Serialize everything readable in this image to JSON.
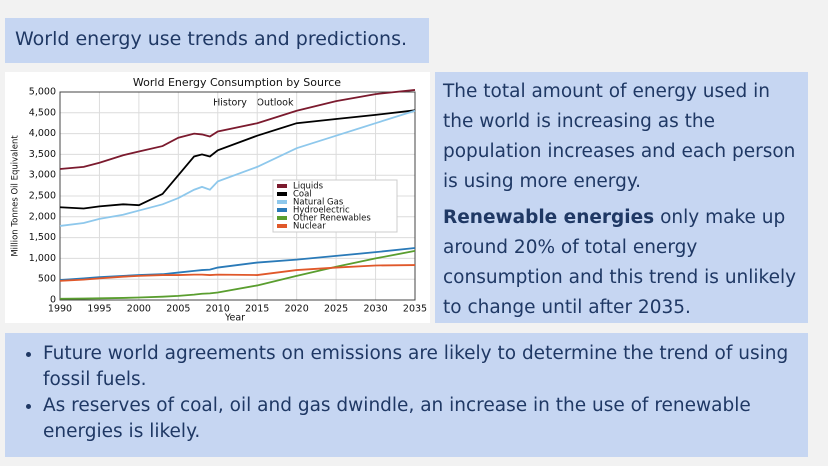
{
  "title": "World energy use trends and predictions.",
  "text_box": {
    "paragraphs": [
      "The total amount of energy used in the world is increasing as the population increases and each person is using more energy.",
      {
        "bold": "Renewable energies",
        "rest": " only make up around 20% of total energy consumption and this trend is unlikely to change until after 2035."
      }
    ]
  },
  "bullets": [
    "Future world agreements on emissions are likely to determine the trend of using fossil fuels.",
    "As reserves of coal, oil and gas dwindle, an increase in the use of renewable energies is likely."
  ],
  "chart_data": {
    "type": "line",
    "title": "World Energy Consumption by Source",
    "annotations": [
      "History",
      "Outlook"
    ],
    "x_label": "Year",
    "y_label": "Million Tonnes Oil Equivalent",
    "x": [
      1990,
      1993,
      1995,
      1998,
      2000,
      2003,
      2005,
      2007,
      2008,
      2009,
      2010,
      2015,
      2020,
      2025,
      2030,
      2035
    ],
    "series": [
      {
        "name": "Liquids",
        "color": "#7b1a2e",
        "values": [
          3150,
          3200,
          3300,
          3480,
          3570,
          3700,
          3900,
          4000,
          3980,
          3930,
          4050,
          4250,
          4550,
          4780,
          4950,
          5050
        ]
      },
      {
        "name": "Coal",
        "color": "#000000",
        "values": [
          2230,
          2200,
          2250,
          2300,
          2280,
          2550,
          3000,
          3450,
          3500,
          3450,
          3600,
          3950,
          4250,
          4350,
          4450,
          4560
        ]
      },
      {
        "name": "Natural Gas",
        "color": "#8ec8ec",
        "values": [
          1780,
          1850,
          1950,
          2050,
          2150,
          2300,
          2450,
          2650,
          2720,
          2650,
          2850,
          3200,
          3650,
          3950,
          4250,
          4550
        ]
      },
      {
        "name": "Hydroelectric",
        "color": "#2a7ab8",
        "values": [
          480,
          520,
          550,
          580,
          600,
          620,
          660,
          700,
          720,
          730,
          780,
          900,
          970,
          1060,
          1150,
          1250
        ]
      },
      {
        "name": "Other Renewables",
        "color": "#5a9e2f",
        "values": [
          30,
          35,
          40,
          50,
          60,
          80,
          100,
          130,
          150,
          160,
          180,
          350,
          580,
          800,
          1000,
          1180
        ]
      },
      {
        "name": "Nuclear",
        "color": "#e0582a",
        "values": [
          460,
          490,
          520,
          560,
          580,
          600,
          600,
          610,
          610,
          600,
          610,
          600,
          720,
          780,
          830,
          840
        ]
      }
    ],
    "xlim": [
      1990,
      2035
    ],
    "xticks": [
      1990,
      1995,
      2000,
      2005,
      2010,
      2015,
      2020,
      2025,
      2030,
      2035
    ],
    "ylim": [
      0,
      5000
    ],
    "yticks": [
      0,
      500,
      {
        "value": 1000,
        "label": "1,000"
      },
      {
        "value": 1500,
        "label": "1,500"
      },
      {
        "value": 2000,
        "label": "2,000"
      },
      {
        "value": 2500,
        "label": "2,500"
      },
      {
        "value": 3000,
        "label": "3,000"
      },
      {
        "value": 3500,
        "label": "3,500"
      },
      {
        "value": 4000,
        "label": "4,000"
      },
      {
        "value": 4500,
        "label": "4,500"
      },
      {
        "value": 5000,
        "label": "5,000"
      }
    ],
    "grid": true
  }
}
